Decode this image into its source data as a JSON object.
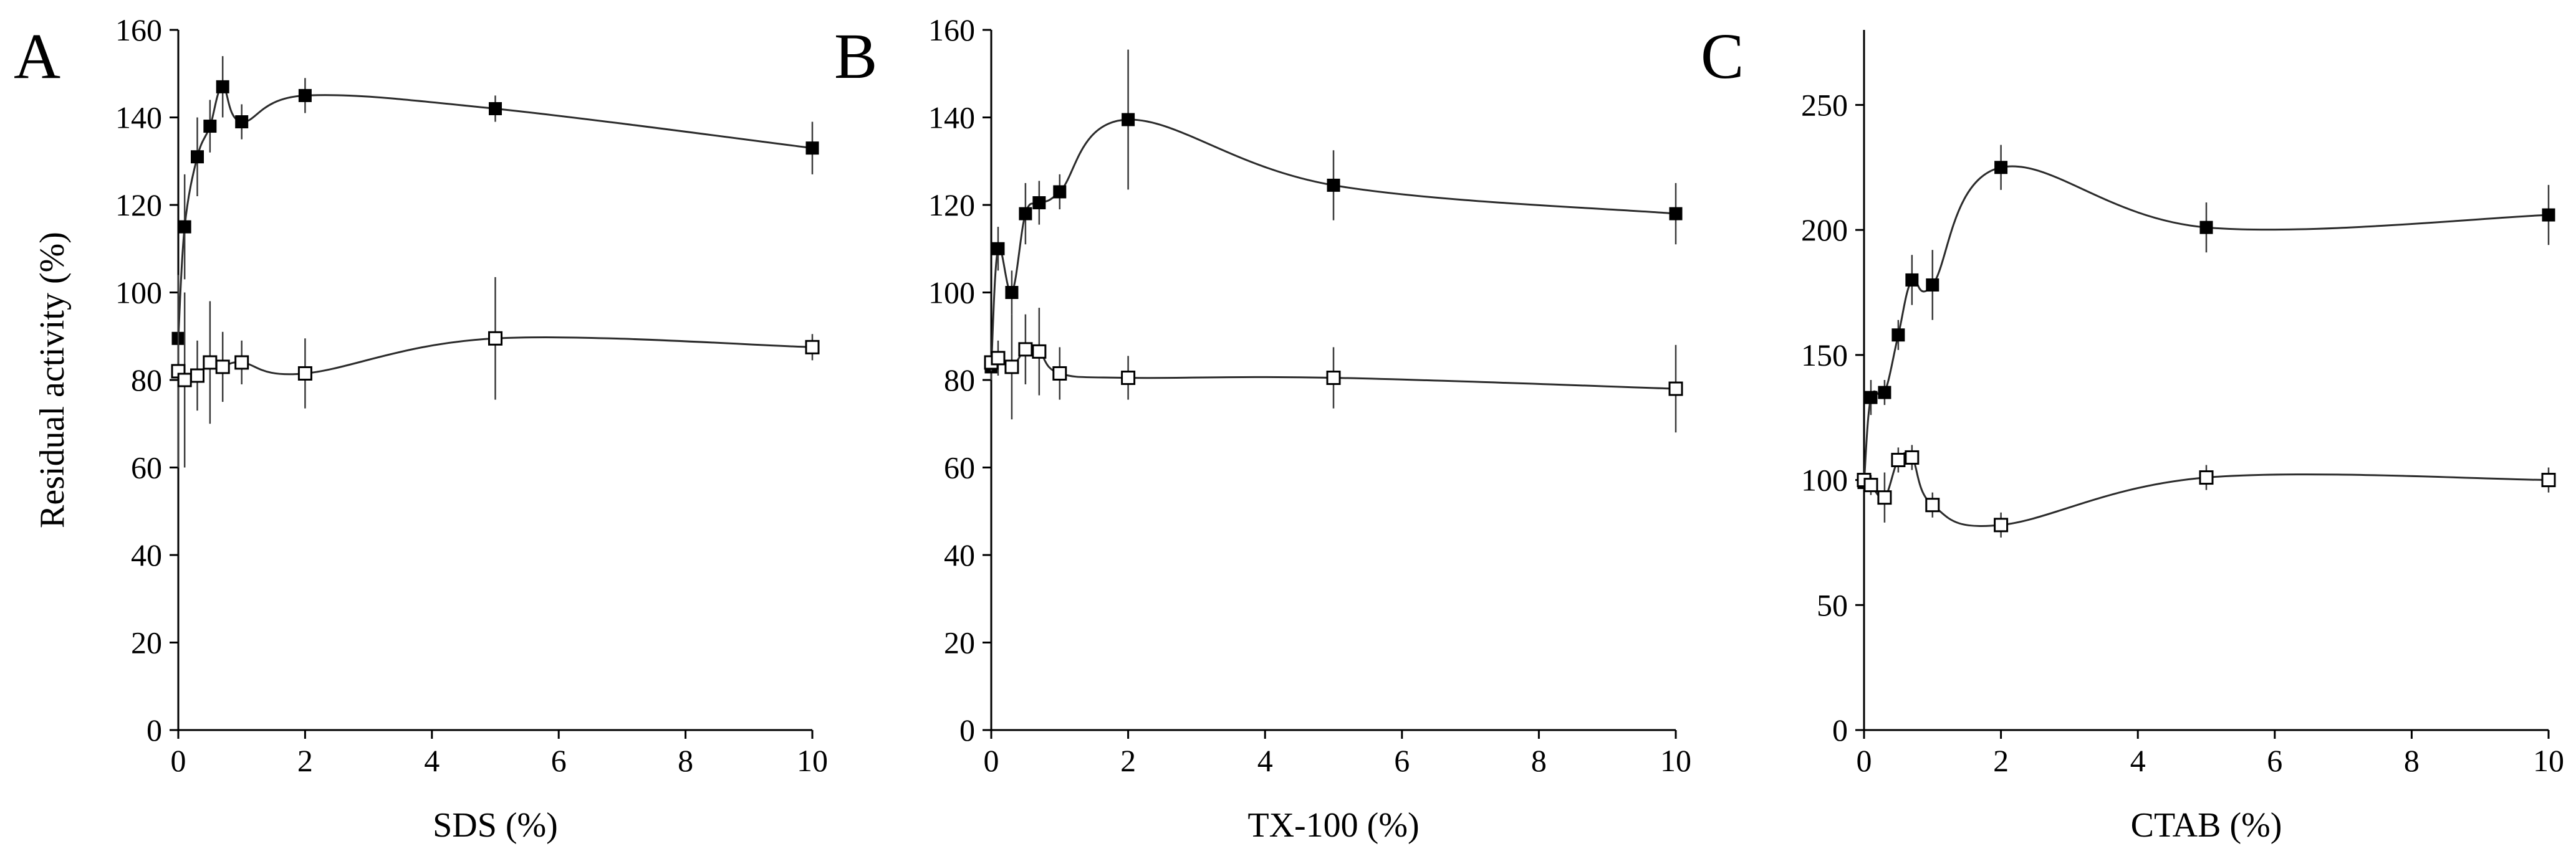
{
  "chart_data": [
    {
      "type": "line",
      "panel": "A",
      "xlabel": "SDS (%)",
      "ylabel": "Residual activity (%)",
      "xlim": [
        0,
        10
      ],
      "ylim": [
        0,
        160
      ],
      "xticks": [
        0,
        2,
        4,
        6,
        8,
        10
      ],
      "yticks": [
        0,
        20,
        40,
        60,
        80,
        100,
        120,
        140,
        160
      ],
      "series": [
        {
          "name": "filled squares",
          "marker": "filled-square",
          "x": [
            0,
            0.1,
            0.3,
            0.5,
            0.7,
            1,
            2,
            5,
            10
          ],
          "y": [
            89.5,
            115,
            131,
            138,
            147,
            139,
            145,
            142,
            133
          ],
          "err": [
            10,
            12,
            9,
            6,
            7,
            4,
            4,
            3,
            6
          ]
        },
        {
          "name": "open squares",
          "marker": "open-square",
          "x": [
            0,
            0.1,
            0.3,
            0.5,
            0.7,
            1,
            2,
            5,
            10
          ],
          "y": [
            82,
            80,
            81,
            84,
            83,
            84,
            81.5,
            89.5,
            87.5
          ],
          "err": [
            22,
            20,
            8,
            14,
            8,
            5,
            8,
            14,
            3
          ]
        }
      ]
    },
    {
      "type": "line",
      "panel": "B",
      "xlabel": "TX-100 (%)",
      "ylabel": "",
      "xlim": [
        0,
        10
      ],
      "ylim": [
        0,
        160
      ],
      "xticks": [
        0,
        2,
        4,
        6,
        8,
        10
      ],
      "yticks": [
        0,
        20,
        40,
        60,
        80,
        100,
        120,
        140,
        160
      ],
      "series": [
        {
          "name": "filled squares",
          "marker": "filled-square",
          "x": [
            0,
            0.1,
            0.3,
            0.5,
            0.7,
            1,
            2,
            5,
            10
          ],
          "y": [
            83,
            110,
            100,
            118,
            120.5,
            123,
            139.5,
            124.5,
            118
          ],
          "err": [
            3,
            5,
            5,
            7,
            5,
            4,
            16,
            8,
            7
          ]
        },
        {
          "name": "open squares",
          "marker": "open-square",
          "x": [
            0,
            0.1,
            0.3,
            0.5,
            0.7,
            1,
            2,
            5,
            10
          ],
          "y": [
            84,
            85,
            83,
            87,
            86.5,
            81.5,
            80.5,
            80.5,
            78
          ],
          "err": [
            2,
            4,
            12,
            8,
            10,
            6,
            5,
            7,
            10
          ]
        }
      ]
    },
    {
      "type": "line",
      "panel": "C",
      "xlabel": "CTAB (%)",
      "ylabel": "",
      "xlim": [
        0,
        10
      ],
      "ylim": [
        0,
        280
      ],
      "xticks": [
        0,
        2,
        4,
        6,
        8,
        10
      ],
      "yticks": [
        0,
        50,
        100,
        150,
        200,
        250
      ],
      "series": [
        {
          "name": "filled squares",
          "marker": "filled-square",
          "x": [
            0,
            0.1,
            0.3,
            0.5,
            0.7,
            1,
            2,
            5,
            10
          ],
          "y": [
            99,
            133,
            135,
            158,
            180,
            178,
            225,
            201,
            206
          ],
          "err": [
            3,
            7,
            5,
            6,
            10,
            14,
            9,
            10,
            12
          ]
        },
        {
          "name": "open squares",
          "marker": "open-square",
          "x": [
            0,
            0.1,
            0.3,
            0.5,
            0.7,
            1,
            2,
            5,
            10
          ],
          "y": [
            100,
            98,
            93,
            108,
            109,
            90,
            82,
            101,
            100
          ],
          "err": [
            3,
            4,
            10,
            5,
            5,
            5,
            5,
            5,
            5
          ]
        }
      ]
    }
  ]
}
